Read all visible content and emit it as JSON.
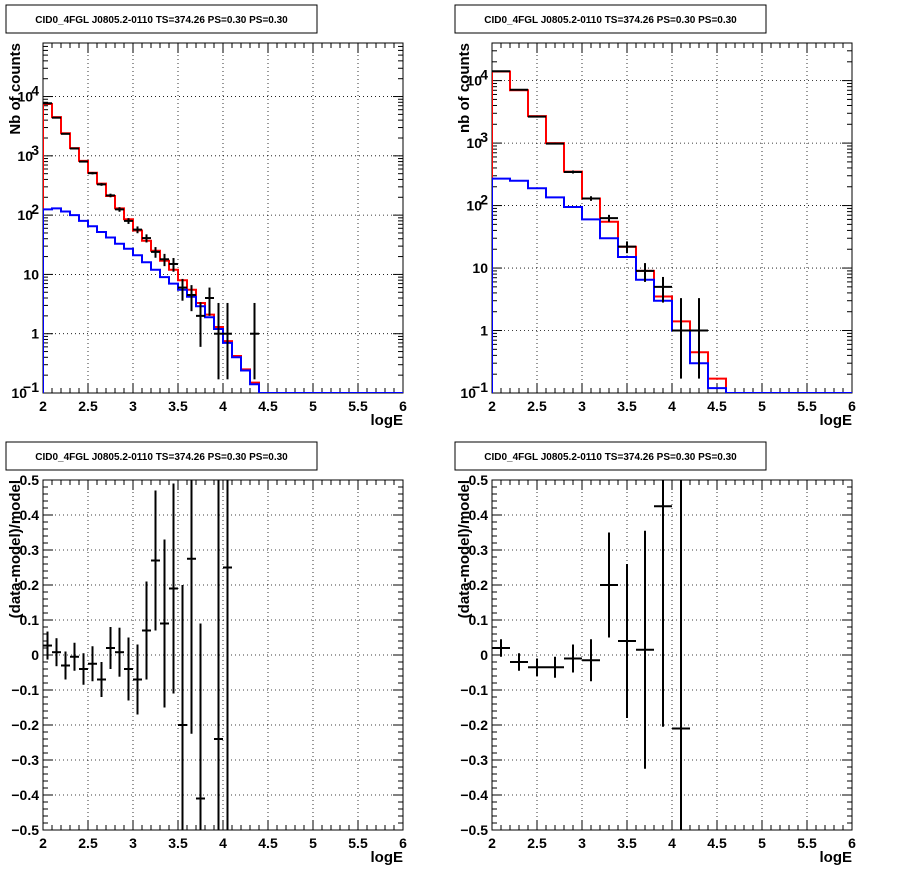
{
  "chart_data": [
    {
      "type": "line",
      "title": "CID0_4FGL J0805.2-0110 TS=374.26 PS=0.30 PS=0.30",
      "xlabel": "logE",
      "ylabel": "Nb of counts",
      "xlim": [
        2,
        6
      ],
      "ylim": [
        0.1,
        80000
      ],
      "yscale": "log",
      "grid": true,
      "xticks": [
        "2",
        "2.5",
        "3",
        "3.5",
        "4",
        "4.5",
        "5",
        "5.5",
        "6"
      ],
      "yticks": [
        {
          "v": 0.1,
          "label": "10",
          "sup": "−1"
        },
        {
          "v": 1,
          "label": "1",
          "sup": ""
        },
        {
          "v": 10,
          "label": "10",
          "sup": ""
        },
        {
          "v": 100,
          "label": "10",
          "sup": "2"
        },
        {
          "v": 1000,
          "label": "10",
          "sup": "3"
        },
        {
          "v": 10000,
          "label": "10",
          "sup": "4"
        }
      ],
      "bin_width": 0.1,
      "series": [
        {
          "color": "#ff0000",
          "style": "step",
          "x": [
            2.05,
            2.15,
            2.25,
            2.35,
            2.45,
            2.55,
            2.65,
            2.75,
            2.85,
            2.95,
            3.05,
            3.15,
            3.25,
            3.35,
            3.45,
            3.55,
            3.65,
            3.75,
            3.85,
            3.95,
            4.05,
            4.15,
            4.25,
            4.35,
            4.45,
            4.55,
            4.65,
            4.75,
            4.85,
            4.95,
            5.05,
            5.15,
            5.25,
            5.35,
            5.45,
            5.55,
            5.65,
            5.75,
            5.85,
            5.95
          ],
          "values": [
            7500,
            4500,
            2400,
            1350,
            820,
            520,
            340,
            210,
            130,
            85,
            55,
            37,
            25,
            17,
            12,
            8,
            5.5,
            3.3,
            2.1,
            1.3,
            0.75,
            0.42,
            0.25,
            0.15,
            0.1,
            0.1,
            0.1,
            0.1,
            0.1,
            0.1,
            0.1,
            0.1,
            0.1,
            0.1,
            0.1,
            0.1,
            0.1,
            0.1,
            0.1,
            0.1
          ]
        },
        {
          "color": "#0000ff",
          "style": "step",
          "x": [
            2.05,
            2.15,
            2.25,
            2.35,
            2.45,
            2.55,
            2.65,
            2.75,
            2.85,
            2.95,
            3.05,
            3.15,
            3.25,
            3.35,
            3.45,
            3.55,
            3.65,
            3.75,
            3.85,
            3.95,
            4.05,
            4.15,
            4.25,
            4.35,
            4.45,
            4.55,
            4.65,
            4.75,
            4.85,
            4.95,
            5.05,
            5.15,
            5.25,
            5.35,
            5.45,
            5.55,
            5.65,
            5.75,
            5.85,
            5.95
          ],
          "values": [
            125,
            130,
            115,
            100,
            80,
            65,
            52,
            42,
            33,
            27,
            21,
            16,
            12,
            9,
            7,
            5.5,
            4.2,
            2.9,
            1.9,
            1.2,
            0.7,
            0.4,
            0.24,
            0.14,
            0.1,
            0.1,
            0.1,
            0.1,
            0.1,
            0.1,
            0.1,
            0.1,
            0.1,
            0.1,
            0.1,
            0.1,
            0.1,
            0.1,
            0.1,
            0.1
          ]
        },
        {
          "color": "#000000",
          "style": "points",
          "x": [
            2.05,
            2.15,
            2.25,
            2.35,
            2.45,
            2.55,
            2.65,
            2.75,
            2.85,
            2.95,
            3.05,
            3.15,
            3.25,
            3.35,
            3.45,
            3.55,
            3.65,
            3.75,
            3.85,
            3.95,
            4.05,
            4.35
          ],
          "values": [
            7700,
            4400,
            2350,
            1330,
            800,
            510,
            330,
            215,
            125,
            80,
            57,
            41,
            24,
            18,
            15,
            6,
            4.5,
            2,
            4,
            1,
            1,
            1
          ],
          "err_lo": [
            88,
            66,
            48,
            36,
            28,
            23,
            18,
            15,
            11,
            9,
            7.5,
            6.4,
            4.9,
            4.2,
            3.9,
            2.4,
            2.1,
            1.4,
            2,
            0.83,
            0.83,
            0.83
          ],
          "err_hi": [
            88,
            66,
            48,
            36,
            28,
            23,
            18,
            15,
            11,
            9,
            7.5,
            6.4,
            4.9,
            4.2,
            3.9,
            2.4,
            2.1,
            1.4,
            2,
            2.3,
            2.3,
            2.3
          ]
        }
      ]
    },
    {
      "type": "line",
      "title": "CID0_4FGL J0805.2-0110 TS=374.26 PS=0.30 PS=0.30",
      "xlabel": "logE",
      "ylabel": "nb of counts",
      "xlim": [
        2,
        6
      ],
      "ylim": [
        0.1,
        40000
      ],
      "yscale": "log",
      "grid": true,
      "xticks": [
        "2",
        "2.5",
        "3",
        "3.5",
        "4",
        "4.5",
        "5",
        "5.5",
        "6"
      ],
      "yticks": [
        {
          "v": 0.1,
          "label": "10",
          "sup": "−1"
        },
        {
          "v": 1,
          "label": "1",
          "sup": ""
        },
        {
          "v": 10,
          "label": "10",
          "sup": ""
        },
        {
          "v": 100,
          "label": "10",
          "sup": "2"
        },
        {
          "v": 1000,
          "label": "10",
          "sup": "3"
        },
        {
          "v": 10000,
          "label": "10",
          "sup": "4"
        }
      ],
      "bin_width": 0.2,
      "series": [
        {
          "color": "#ff0000",
          "style": "step",
          "x": [
            2.1,
            2.3,
            2.5,
            2.7,
            2.9,
            3.1,
            3.3,
            3.5,
            3.7,
            3.9,
            4.1,
            4.3,
            4.5,
            4.7,
            4.9,
            5.1,
            5.3,
            5.5,
            5.7,
            5.9
          ],
          "values": [
            14000,
            7000,
            2700,
            1000,
            350,
            130,
            55,
            22,
            9,
            3.5,
            1.4,
            0.45,
            0.17,
            0.1,
            0.1,
            0.1,
            0.1,
            0.1,
            0.1,
            0.1
          ]
        },
        {
          "color": "#0000ff",
          "style": "step",
          "x": [
            2.1,
            2.3,
            2.5,
            2.7,
            2.9,
            3.1,
            3.3,
            3.5,
            3.7,
            3.9,
            4.1,
            4.3,
            4.5,
            4.7,
            4.9,
            5.1,
            5.3,
            5.5,
            5.7,
            5.9
          ],
          "values": [
            270,
            250,
            190,
            135,
            95,
            60,
            30,
            15,
            6.5,
            3,
            1,
            0.3,
            0.12,
            0.1,
            0.1,
            0.1,
            0.1,
            0.1,
            0.1,
            0.1
          ]
        },
        {
          "color": "#000000",
          "style": "points",
          "x": [
            2.1,
            2.3,
            2.5,
            2.7,
            2.9,
            3.1,
            3.3,
            3.5,
            3.7,
            3.9,
            4.1,
            4.3
          ],
          "values": [
            14100,
            7150,
            2650,
            980,
            345,
            130,
            63,
            22,
            9,
            5,
            1,
            1
          ],
          "err_lo": [
            120,
            85,
            51,
            31,
            19,
            11,
            8,
            4.7,
            3,
            2.2,
            0.83,
            0.83
          ],
          "err_hi": [
            120,
            85,
            51,
            31,
            19,
            11,
            8,
            4.7,
            3,
            2.2,
            2.3,
            2.3
          ]
        }
      ]
    },
    {
      "type": "scatter",
      "title": "CID0_4FGL J0805.2-0110 TS=374.26 PS=0.30 PS=0.30",
      "xlabel": "logE",
      "ylabel": "(data-model)/model",
      "xlim": [
        2,
        6
      ],
      "ylim": [
        -0.5,
        0.5
      ],
      "yscale": "linear",
      "grid": true,
      "xticks": [
        "2",
        "2.5",
        "3",
        "3.5",
        "4",
        "4.5",
        "5",
        "5.5",
        "6"
      ],
      "yticks": [
        {
          "v": -0.5,
          "label": "−0.5",
          "sup": ""
        },
        {
          "v": -0.4,
          "label": "−0.4",
          "sup": ""
        },
        {
          "v": -0.3,
          "label": "−0.3",
          "sup": ""
        },
        {
          "v": -0.2,
          "label": "−0.2",
          "sup": ""
        },
        {
          "v": -0.1,
          "label": "−0.1",
          "sup": ""
        },
        {
          "v": 0,
          "label": "0",
          "sup": ""
        },
        {
          "v": 0.1,
          "label": "0.1",
          "sup": ""
        },
        {
          "v": 0.2,
          "label": "0.2",
          "sup": ""
        },
        {
          "v": 0.3,
          "label": "0.3",
          "sup": ""
        },
        {
          "v": 0.4,
          "label": "0.4",
          "sup": ""
        },
        {
          "v": 0.5,
          "label": "0.5",
          "sup": ""
        }
      ],
      "bin_width": 0.1,
      "series": [
        {
          "color": "#000000",
          "style": "points",
          "x": [
            2.05,
            2.15,
            2.25,
            2.35,
            2.45,
            2.55,
            2.65,
            2.75,
            2.85,
            2.95,
            3.05,
            3.15,
            3.25,
            3.35,
            3.45,
            3.55,
            3.65,
            3.75,
            3.95,
            4.05
          ],
          "values": [
            0.027,
            0.008,
            -0.03,
            -0.005,
            -0.04,
            -0.025,
            -0.07,
            0.02,
            0.008,
            -0.04,
            -0.07,
            0.07,
            0.27,
            0.09,
            0.19,
            -0.2,
            0.275,
            -0.41,
            -0.24,
            0.25
          ],
          "err_lo": [
            0.04,
            0.04,
            0.04,
            0.04,
            0.045,
            0.05,
            0.05,
            0.06,
            0.07,
            0.09,
            0.1,
            0.14,
            0.2,
            0.24,
            0.3,
            0.4,
            0.5,
            0.5,
            0.5,
            0.8
          ],
          "err_hi": [
            0.04,
            0.04,
            0.04,
            0.04,
            0.045,
            0.05,
            0.05,
            0.06,
            0.07,
            0.09,
            0.1,
            0.14,
            0.2,
            0.24,
            0.3,
            0.4,
            0.5,
            0.5,
            0.9,
            1.2
          ]
        }
      ]
    },
    {
      "type": "scatter",
      "title": "CID0_4FGL J0805.2-0110 TS=374.26 PS=0.30 PS=0.30",
      "xlabel": "logE",
      "ylabel": "(data-model)/model",
      "xlim": [
        2,
        6
      ],
      "ylim": [
        -0.5,
        0.5
      ],
      "yscale": "linear",
      "grid": true,
      "xticks": [
        "2",
        "2.5",
        "3",
        "3.5",
        "4",
        "4.5",
        "5",
        "5.5",
        "6"
      ],
      "yticks": [
        {
          "v": -0.5,
          "label": "−0.5",
          "sup": ""
        },
        {
          "v": -0.4,
          "label": "−0.4",
          "sup": ""
        },
        {
          "v": -0.3,
          "label": "−0.3",
          "sup": ""
        },
        {
          "v": -0.2,
          "label": "−0.2",
          "sup": ""
        },
        {
          "v": -0.1,
          "label": "−0.1",
          "sup": ""
        },
        {
          "v": 0,
          "label": "0",
          "sup": ""
        },
        {
          "v": 0.1,
          "label": "0.1",
          "sup": ""
        },
        {
          "v": 0.2,
          "label": "0.2",
          "sup": ""
        },
        {
          "v": 0.3,
          "label": "0.3",
          "sup": ""
        },
        {
          "v": 0.4,
          "label": "0.4",
          "sup": ""
        },
        {
          "v": 0.5,
          "label": "0.5",
          "sup": ""
        }
      ],
      "bin_width": 0.2,
      "series": [
        {
          "color": "#000000",
          "style": "points",
          "x": [
            2.1,
            2.3,
            2.5,
            2.7,
            2.9,
            3.1,
            3.3,
            3.5,
            3.7,
            3.9,
            4.1
          ],
          "values": [
            0.02,
            -0.02,
            -0.035,
            -0.035,
            -0.01,
            -0.015,
            0.2,
            0.04,
            0.015,
            0.425,
            -0.21
          ],
          "err_lo": [
            0.025,
            0.025,
            0.025,
            0.03,
            0.04,
            0.06,
            0.15,
            0.22,
            0.34,
            0.63,
            0.8
          ],
          "err_hi": [
            0.025,
            0.025,
            0.025,
            0.03,
            0.04,
            0.06,
            0.15,
            0.22,
            0.34,
            0.63,
            0.8
          ]
        }
      ]
    }
  ]
}
